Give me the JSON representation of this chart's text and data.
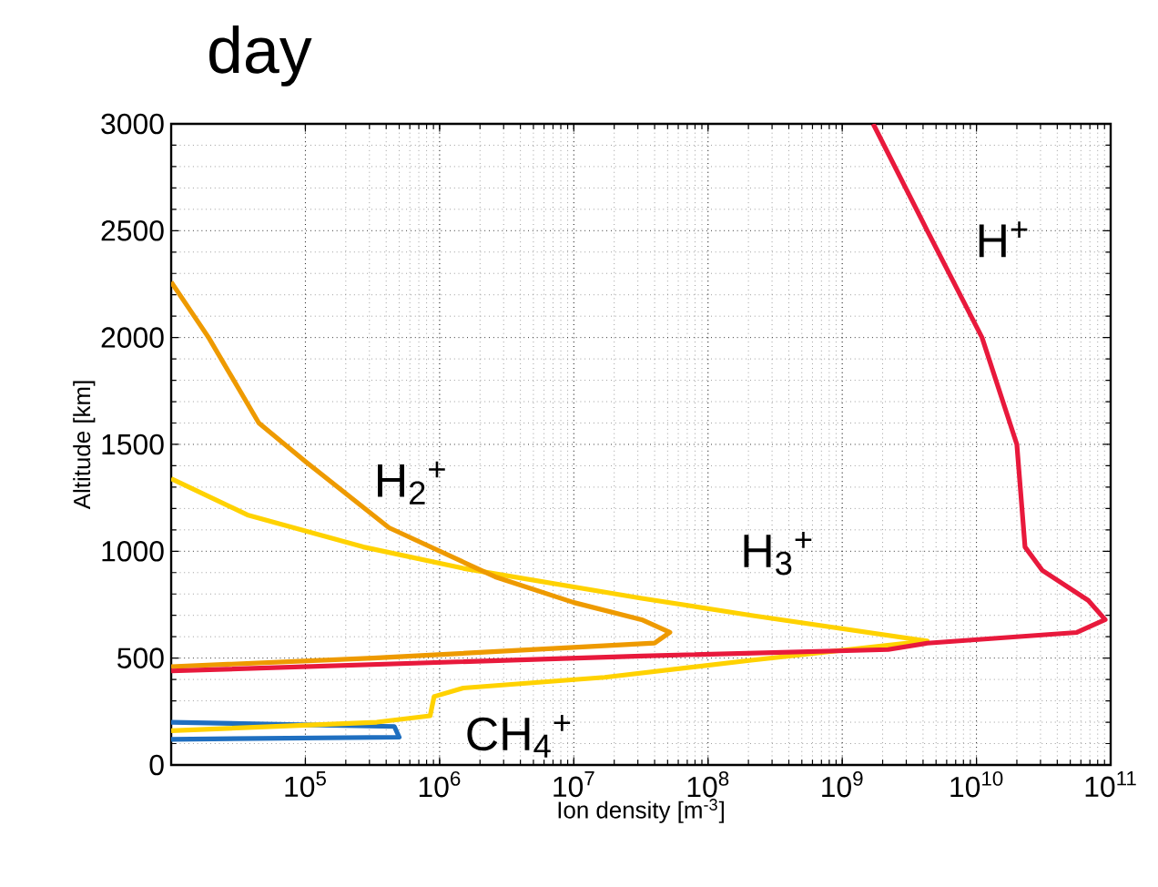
{
  "chart_data": {
    "type": "line",
    "title": "day",
    "xlabel": "Ion density [m$^{-3}$]",
    "ylabel": "Altitude [km]",
    "log": "x",
    "grid": true,
    "xlim": [
      10000.0,
      100000000000.0
    ],
    "ylim": [
      0,
      3000
    ],
    "xticks": [
      {
        "value": 100000.0,
        "label": "10$^{5}$"
      },
      {
        "value": 1000000.0,
        "label": "10$^{6}$"
      },
      {
        "value": 10000000.0,
        "label": "10$^{7}$"
      },
      {
        "value": 100000000.0,
        "label": "10$^{8}$"
      },
      {
        "value": 1000000000.0,
        "label": "10$^{9}$"
      },
      {
        "value": 10000000000.0,
        "label": "10$^{10}$"
      },
      {
        "value": 100000000000.0,
        "label": "10$^{11}$"
      }
    ],
    "yticks": [
      0,
      500,
      1000,
      1500,
      2000,
      2500,
      3000
    ],
    "series": [
      {
        "name": "CH$_{4}$$^{+}$",
        "color": "#1f6fc0",
        "x": [
          10000.0,
          460000.0,
          500000.0,
          10000.0
        ],
        "values": [
          200,
          180,
          130,
          120
        ]
      },
      {
        "name": "H$_{3}$$^{+}$",
        "color": "#ffd200",
        "x": [
          10000.0,
          37000.0,
          270000.0,
          1500000.0,
          32000000.0,
          210000000.0,
          4300000000.0,
          210000000.0,
          17000000.0,
          1500000.0,
          910000.0,
          850000.0,
          340000.0,
          10000.0
        ],
        "values": [
          1340,
          1170,
          1020,
          920,
          780,
          700,
          580,
          490,
          410,
          360,
          320,
          230,
          200,
          160
        ]
      },
      {
        "name": "H$_{2}$$^{+}$",
        "color": "#ee9a00",
        "x": [
          10000.0,
          19000.0,
          45000.0,
          100000.0,
          420000.0,
          2600000.0,
          10000000.0,
          32000000.0,
          52000000.0,
          40000000.0,
          10000000.0,
          320000.0,
          10000.0
        ],
        "values": [
          2260,
          2000,
          1600,
          1420,
          1110,
          880,
          760,
          680,
          620,
          570,
          550,
          500,
          460
        ]
      },
      {
        "name": "H$^{+}$",
        "color": "#e8193c",
        "x": [
          10000.0,
          32000000.0,
          2200000000.0,
          4300000000.0,
          56000000000.0,
          91000000000.0,
          68000000000.0,
          31000000000.0,
          23000000000.0,
          20000000000.0,
          11000000000.0,
          4300000000.0,
          1700000000.0
        ],
        "values": [
          440,
          510,
          540,
          570,
          620,
          680,
          770,
          910,
          1020,
          1500,
          2000,
          2500,
          3000
        ]
      }
    ]
  }
}
